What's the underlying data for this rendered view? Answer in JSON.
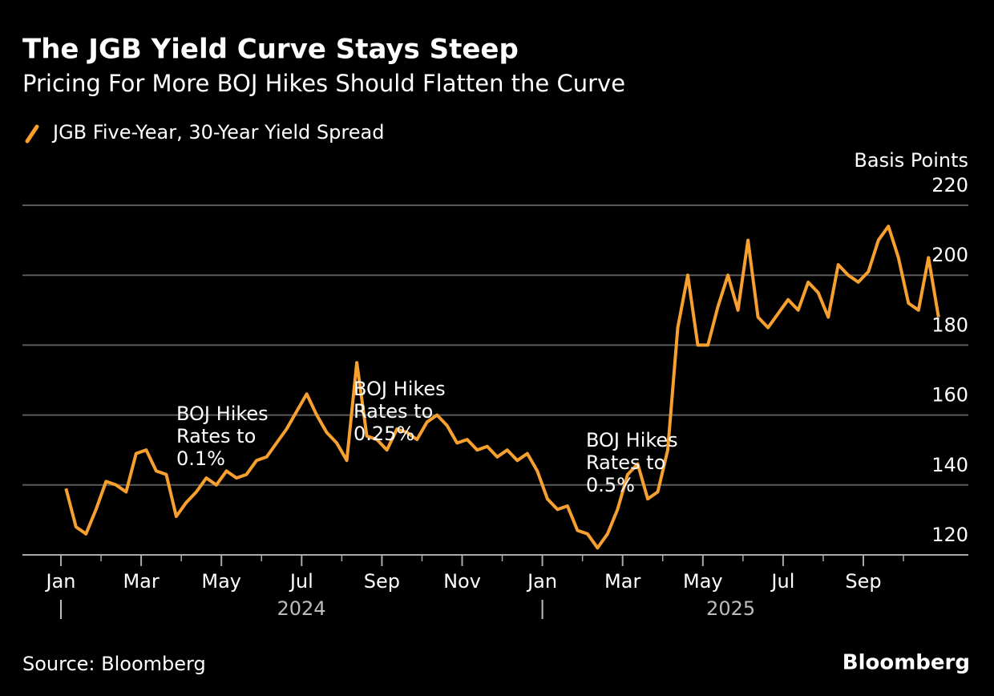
{
  "chart_data": {
    "type": "line",
    "title": "The JGB Yield Curve Stays Steep",
    "subtitle": "Pricing For More BOJ Hikes Should Flatten the Curve",
    "y_label": "Basis Points",
    "source": "Source: Bloomberg",
    "brand": "Bloomberg",
    "x": [
      "2024-01",
      "2024-01",
      "2024-01",
      "2024-01",
      "2024-02",
      "2024-02",
      "2024-02",
      "2024-02",
      "2024-03",
      "2024-03",
      "2024-03",
      "2024-03",
      "2024-04",
      "2024-04",
      "2024-04",
      "2024-04",
      "2024-05",
      "2024-05",
      "2024-05",
      "2024-05",
      "2024-06",
      "2024-06",
      "2024-06",
      "2024-06",
      "2024-07",
      "2024-07",
      "2024-07",
      "2024-07",
      "2024-08",
      "2024-08",
      "2024-08",
      "2024-08",
      "2024-09",
      "2024-09",
      "2024-09",
      "2024-09",
      "2024-10",
      "2024-10",
      "2024-10",
      "2024-10",
      "2024-11",
      "2024-11",
      "2024-11",
      "2024-11",
      "2024-12",
      "2024-12",
      "2024-12",
      "2024-12",
      "2025-01",
      "2025-01",
      "2025-01",
      "2025-01",
      "2025-02",
      "2025-02",
      "2025-02",
      "2025-02",
      "2025-03",
      "2025-03",
      "2025-03",
      "2025-03",
      "2025-04",
      "2025-04",
      "2025-04",
      "2025-04",
      "2025-05",
      "2025-05",
      "2025-05",
      "2025-05",
      "2025-06",
      "2025-06",
      "2025-06",
      "2025-06",
      "2025-07",
      "2025-07",
      "2025-07",
      "2025-07",
      "2025-08",
      "2025-08",
      "2025-08",
      "2025-08",
      "2025-09",
      "2025-09",
      "2025-09",
      "2025-09",
      "2025-10",
      "2025-10",
      "2025-10",
      "2025-10"
    ],
    "series": [
      {
        "name": "JGB Five-Year, 30-Year Yield Spread",
        "color": "#f7a030",
        "values": [
          139,
          128,
          126,
          133,
          141,
          140,
          138,
          149,
          150,
          144,
          143,
          131,
          135,
          138,
          142,
          140,
          144,
          142,
          143,
          147,
          148,
          152,
          156,
          161,
          166,
          160,
          155,
          152,
          147,
          175,
          154,
          153,
          150,
          156,
          155,
          153,
          158,
          160,
          157,
          152,
          153,
          150,
          151,
          148,
          150,
          147,
          149,
          144,
          136,
          133,
          134,
          127,
          126,
          122,
          126,
          133,
          143,
          146,
          136,
          138,
          150,
          185,
          200,
          180,
          180,
          191,
          200,
          190,
          210,
          188,
          185,
          189,
          193,
          190,
          198,
          195,
          188,
          203,
          200,
          198,
          201,
          210,
          214,
          205,
          192,
          190,
          205,
          188
        ]
      }
    ],
    "ylim": [
      120,
      220
    ],
    "yticks": [
      120,
      140,
      160,
      180,
      200,
      220
    ],
    "grid": true,
    "xticks": [
      {
        "value": "2024-01",
        "label": "Jan"
      },
      {
        "value": "2024-03",
        "label": "Mar"
      },
      {
        "value": "2024-05",
        "label": "May"
      },
      {
        "value": "2024-07",
        "label": "Jul"
      },
      {
        "value": "2024-09",
        "label": "Sep"
      },
      {
        "value": "2024-11",
        "label": "Nov"
      },
      {
        "value": "2025-01",
        "label": "Jan"
      },
      {
        "value": "2025-03",
        "label": "Mar"
      },
      {
        "value": "2025-05",
        "label": "May"
      },
      {
        "value": "2025-07",
        "label": "Jul"
      },
      {
        "value": "2025-09",
        "label": "Sep"
      }
    ],
    "years": [
      "2024",
      "2025"
    ],
    "annotations": [
      [
        "BOJ Hikes",
        "Rates to",
        "0.1%"
      ],
      [
        "BOJ Hikes",
        "Rates to",
        "0.25%"
      ],
      [
        "BOJ Hikes",
        "Rates to",
        "0.5%"
      ]
    ]
  }
}
